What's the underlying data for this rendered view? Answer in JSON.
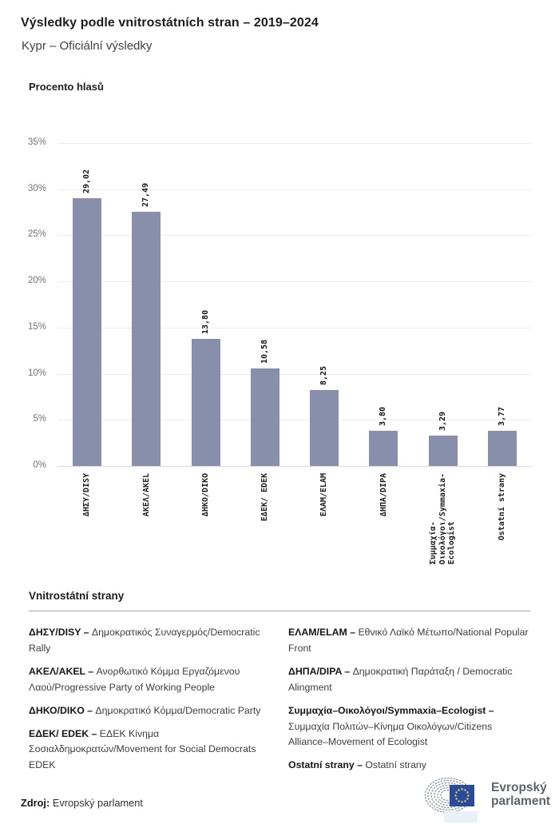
{
  "header": {
    "title": "Výsledky podle vnitrostátních stran – 2019–2024",
    "subtitle": "Kypr – Oficiální výsledky"
  },
  "chart_data": {
    "type": "bar",
    "title": "Výsledky podle vnitrostátních stran – 2019–2024",
    "subtitle": "Kypr – Oficiální výsledky",
    "ylabel": "Procento hlasů",
    "categories": [
      "ΔΗΣΥ/DISY",
      "ΑΚΕΛ/AKEL",
      "ΔΗΚΟ/DIKO",
      "ΕΔΕΚ/ EDEK",
      "ΕΛΑΜ/ELAM",
      "ΔΗΠΑ/DIPA",
      "Συμμαχία-Οικολόγοι/Symmaxia-Ecologist",
      "Ostatní strany"
    ],
    "category_lines": [
      [
        "ΔΗΣΥ/DISY"
      ],
      [
        "ΑΚΕΛ/AKEL"
      ],
      [
        "ΔΗΚΟ/DIKO"
      ],
      [
        "ΕΔΕΚ/ EDEK"
      ],
      [
        "ΕΛΑΜ/ELAM"
      ],
      [
        "ΔΗΠΑ/DIPA"
      ],
      [
        "Συμμαχία-",
        "Οικολόγοι/Symmaxia-",
        "Ecologist"
      ],
      [
        "Ostatní strany"
      ]
    ],
    "values": [
      29.02,
      27.49,
      13.8,
      10.58,
      8.25,
      3.8,
      3.29,
      3.77
    ],
    "value_labels": [
      "29,02",
      "27,49",
      "13,80",
      "10,58",
      "8,25",
      "3,80",
      "3,29",
      "3,77"
    ],
    "ylim": [
      0,
      35
    ],
    "ytick_step": 5,
    "ytick_suffix": "%",
    "grid": true,
    "legend_position": "none",
    "bar_color": "#878fab"
  },
  "legend": {
    "heading": "Vnitrostátní strany",
    "columns": [
      [
        {
          "term": "ΔΗΣΥ/DISY –",
          "desc": "Δημοκρατικός Συναγερμός/Democratic Rally"
        },
        {
          "term": "ΑΚΕΛ/AKEL  –",
          "desc": "Ανορθωτικό Κόμμα Εργαζόμενου Λαού/Progressive Party of Working People"
        },
        {
          "term": "ΔΗΚΟ/DIKO –",
          "desc": "Δημοκρατικό Κόμμα/Democratic Party"
        },
        {
          "term": "ΕΔΕΚ/ EDEK –",
          "desc": "ΕΔΕΚ Κίνημα Σοσιαλδημοκρατών/Movement for Social Democrats EDEK"
        }
      ],
      [
        {
          "term": "ΕΛΑΜ/ELAM –",
          "desc": "Εθνικό Λαϊκό Μέτωπο/National Popular Front"
        },
        {
          "term": "ΔΗΠΑ/DIPA –",
          "desc": "Δημοκρατική Παράταξη / Democratic Alingment"
        },
        {
          "term": "Συμμαχία–Οικολόγοι/Symmaxia–Ecologist –",
          "desc": "Συμμαχία Πολιτών–Κίνημα Οικολόγων/Citizens Alliance–Movement of Ecologist"
        },
        {
          "term": "Ostatní strany –",
          "desc": "Ostatní strany"
        }
      ]
    ]
  },
  "source": {
    "label": "Zdroj:",
    "text": "Evropský parlament"
  },
  "logo": {
    "line1": "Evropský",
    "line2": "parlament",
    "flag_color": "#2a4b9b",
    "star_color": "#e8d44a",
    "arc_color": "#9aa2a9"
  }
}
